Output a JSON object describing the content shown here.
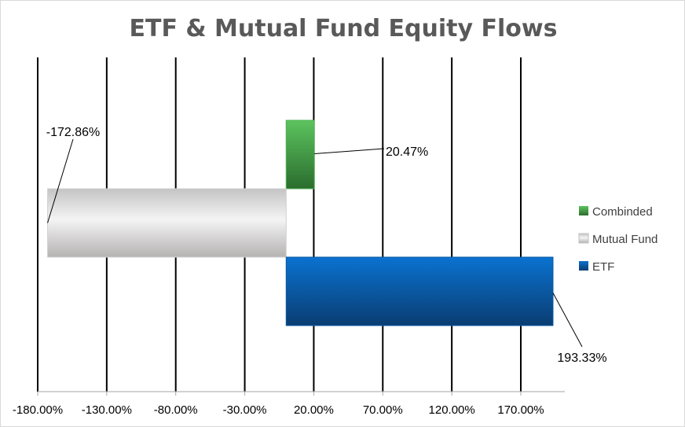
{
  "chart_data": {
    "type": "bar",
    "orientation": "horizontal",
    "title": "ETF & Mutual Fund Equity Flows",
    "xlabel": "",
    "ylabel": "",
    "xlim": [
      -180,
      190
    ],
    "x_ticks": [
      -180,
      -130,
      -80,
      -30,
      20,
      70,
      120,
      170
    ],
    "x_tick_labels": [
      "-180.00%",
      "-130.00%",
      "-80.00%",
      "-30.00%",
      "20.00%",
      "70.00%",
      "120.00%",
      "170.00%"
    ],
    "grid": "vertical",
    "legend_position": "right",
    "series": [
      {
        "name": "Combinded",
        "value": 20.47,
        "label": "20.47%",
        "color": "#4caf50"
      },
      {
        "name": "Mutual Fund",
        "value": -172.86,
        "label": "-172.86%",
        "color": "#d9d9d9"
      },
      {
        "name": "ETF",
        "value": 193.33,
        "label": "193.33%",
        "color": "#0b63b6"
      }
    ]
  }
}
